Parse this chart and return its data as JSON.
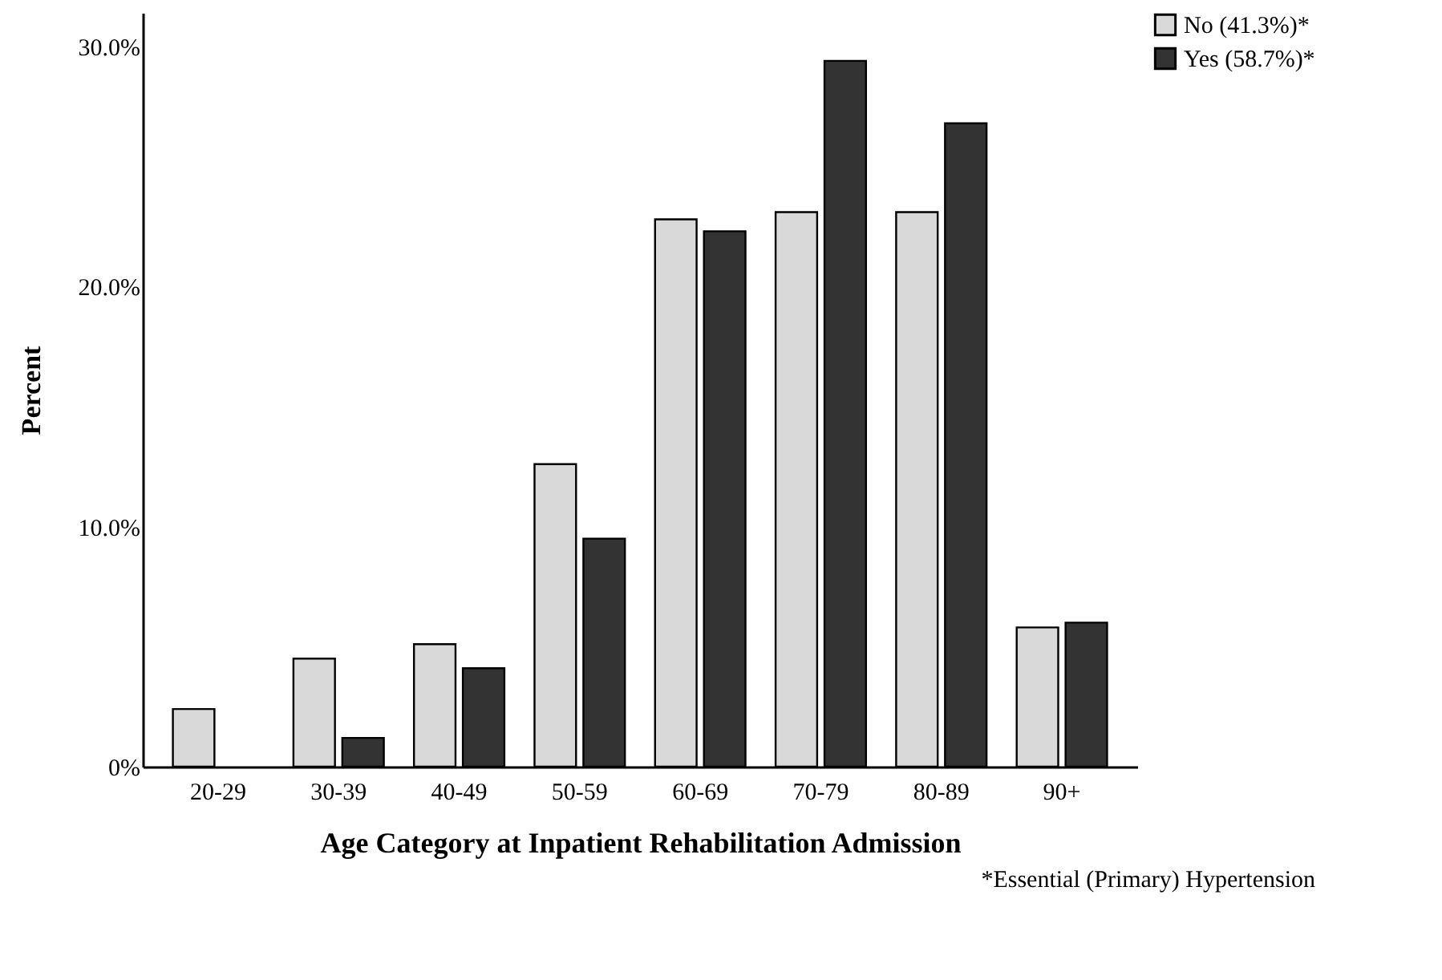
{
  "chart_data": {
    "type": "bar",
    "xlabel": "Age Category at Inpatient Rehabilitation Admission",
    "ylabel": "Percent",
    "categories": [
      "20-29",
      "30-39",
      "40-49",
      "50-59",
      "60-69",
      "70-79",
      "80-89",
      "90+"
    ],
    "series": [
      {
        "name": "No (41.3%)*",
        "color": "#d9d9d9",
        "values": [
          2.4,
          4.5,
          5.1,
          12.6,
          22.8,
          23.1,
          23.1,
          5.8
        ]
      },
      {
        "name": "Yes (58.7%)*",
        "color": "#333333",
        "values": [
          0,
          1.2,
          4.1,
          9.5,
          22.3,
          29.4,
          26.8,
          6.0
        ]
      }
    ],
    "ylim": [
      0,
      31.4
    ],
    "yticks": [
      {
        "value": 0,
        "label": "0%"
      },
      {
        "value": 10,
        "label": "10.0%"
      },
      {
        "value": 20,
        "label": "20.0%"
      },
      {
        "value": 30,
        "label": "30.0%"
      }
    ],
    "grid": false,
    "legend": "top right",
    "annotations": [
      "*Essential (Primary) Hypertension"
    ]
  }
}
